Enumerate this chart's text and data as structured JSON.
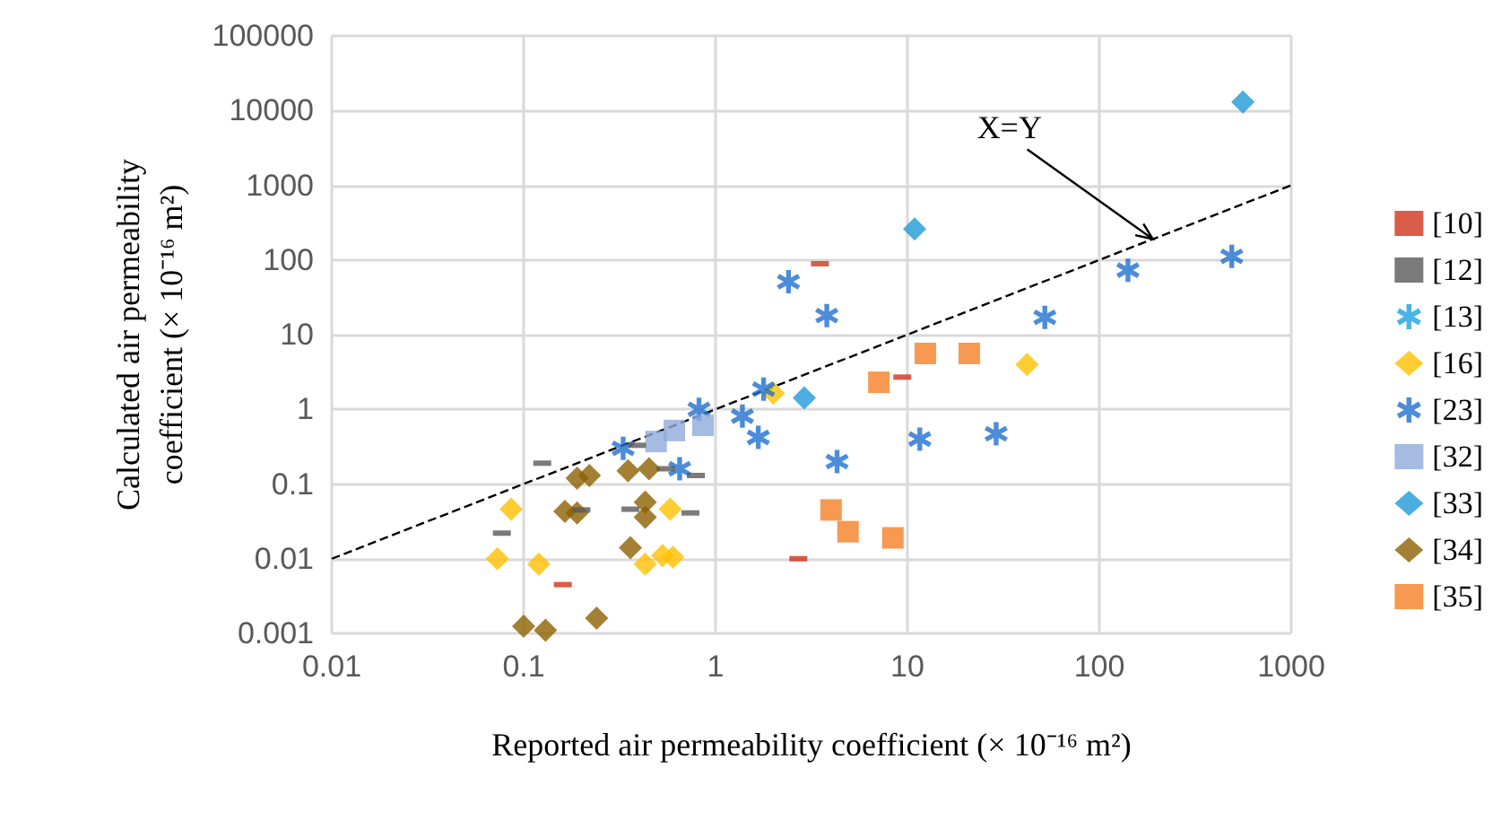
{
  "chart_data": {
    "type": "scatter",
    "xlabel": "Reported air permeability coefficient (× 10⁻¹⁶ m²)",
    "ylabel": "Calculated air permeability\ncoefficient (× 10⁻¹⁶ m²)",
    "log": "xy",
    "xlim": [
      0.01,
      1000
    ],
    "xticks": [
      0.01,
      0.1,
      1,
      10,
      100,
      1000
    ],
    "ylim": [
      0.001,
      100000
    ],
    "yticks": [
      0.001,
      0.01,
      0.1,
      1,
      10,
      100,
      1000,
      10000,
      100000
    ],
    "grid": true,
    "legend": "right",
    "annotations": [
      {
        "text": "X=Y",
        "x": 190,
        "y": 190
      }
    ],
    "series": [
      {
        "name": "[10]",
        "color": "#d0341a",
        "x": [
          3.5,
          9.4,
          2.7,
          0.16
        ],
        "values": [
          89,
          2.7,
          0.01,
          0.0045
        ]
      },
      {
        "name": "[12]",
        "color": "#595959",
        "x": [
          0.077,
          0.125,
          0.2,
          0.36,
          0.74,
          0.39,
          0.55,
          0.79
        ],
        "values": [
          0.022,
          0.19,
          0.045,
          0.046,
          0.041,
          0.33,
          0.16,
          0.13
        ]
      },
      {
        "name": "[13]",
        "color": "#1fa0e0",
        "marker": "cross"
      },
      {
        "name": "[16]",
        "color": "#ffc000",
        "marker": "diamond",
        "x": [
          0.086,
          0.073,
          0.58,
          0.12,
          0.43,
          0.53,
          0.6,
          2.0,
          42
        ],
        "values": [
          0.046,
          0.01,
          0.046,
          0.0085,
          0.0085,
          0.011,
          0.0105,
          1.65,
          4.0
        ]
      },
      {
        "name": "[23]",
        "color": "#1f6fcf",
        "marker": "cross",
        "x": [
          0.33,
          0.65,
          0.82,
          1.38,
          1.67,
          1.78,
          2.4,
          3.8,
          4.3,
          11.6,
          29,
          52,
          141,
          490
        ],
        "values": [
          0.3,
          0.16,
          1.0,
          0.81,
          0.42,
          1.86,
          51,
          18,
          0.2,
          0.4,
          0.47,
          17,
          73,
          112
        ]
      },
      {
        "name": "[32]",
        "color": "#8eaadb",
        "marker": "square",
        "x": [
          0.49,
          0.61,
          0.86
        ],
        "values": [
          0.37,
          0.52,
          0.61
        ]
      },
      {
        "name": "[33]",
        "color": "#1e9ad6",
        "marker": "diamond",
        "x": [
          2.9,
          10.9,
          560
        ],
        "values": [
          1.42,
          260,
          13000
        ]
      },
      {
        "name": "[34]",
        "color": "#8c6000",
        "marker": "diamond",
        "x": [
          0.19,
          0.22,
          0.35,
          0.45,
          0.164,
          0.19,
          0.43,
          0.43,
          0.36,
          0.1,
          0.13,
          0.24
        ],
        "values": [
          0.12,
          0.13,
          0.15,
          0.16,
          0.043,
          0.041,
          0.057,
          0.036,
          0.014,
          0.00125,
          0.0011,
          0.0016
        ]
      },
      {
        "name": "[35]",
        "color": "#f58025",
        "marker": "square",
        "x": [
          12.4,
          21,
          7.1,
          4.0,
          4.9,
          8.4
        ],
        "values": [
          5.6,
          5.6,
          2.3,
          0.045,
          0.023,
          0.019
        ]
      },
      {
        "type": "line",
        "color": "#000000",
        "marker": "none",
        "line_style": "dashed",
        "x": [
          0.01,
          1000
        ],
        "values": [
          0.01,
          1000
        ]
      }
    ]
  }
}
